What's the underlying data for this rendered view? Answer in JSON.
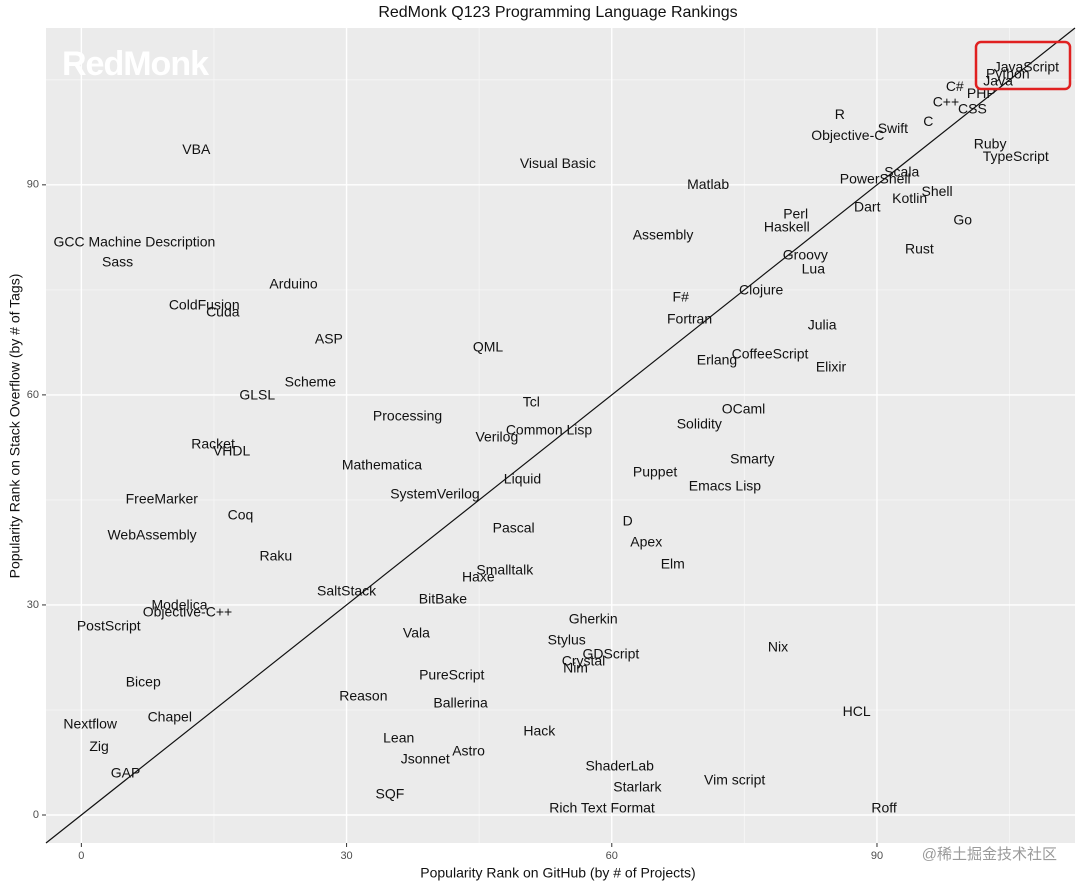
{
  "chart_data": {
    "type": "scatter",
    "title": "RedMonk Q123 Programming Language Rankings",
    "x_label": "Popularity Rank on GitHub (by # of Projects)",
    "y_label": "Popularity Rank on Stack Overflow (by # of Tags)",
    "watermark": "RedMonk",
    "source_watermark": "@稀土掘金技术社区",
    "xlim": [
      -4,
      112.4
    ],
    "ylim": [
      -4,
      112.4
    ],
    "xticks": [
      0,
      30,
      60,
      90
    ],
    "yticks": [
      0,
      30,
      60,
      90
    ],
    "grid": true,
    "minor_grid": true,
    "diagonal": true,
    "color": "#111111",
    "point_labels": [
      "JavaScript",
      "Python",
      "Java",
      "PHP",
      "C#",
      "C++",
      "CSS",
      "C",
      "R",
      "Swift",
      "Objective-C",
      "Ruby",
      "TypeScript",
      "VBA",
      "Visual Basic",
      "Scala",
      "PowerShell",
      "Matlab",
      "Shell",
      "Kotlin",
      "Dart",
      "Perl",
      "Haskell",
      "Go",
      "Assembly",
      "GCC Machine Description",
      "Rust",
      "Groovy",
      "Sass",
      "Lua",
      "Arduino",
      "Clojure",
      "F#",
      "ColdFusion",
      "Cuda",
      "Fortran",
      "Julia",
      "ASP",
      "QML",
      "CoffeeScript",
      "Erlang",
      "Elixir",
      "Scheme",
      "GLSL",
      "Tcl",
      "OCaml",
      "Processing",
      "Solidity",
      "Common Lisp",
      "Verilog",
      "Racket",
      "VHDL",
      "Smarty",
      "Mathematica",
      "Puppet",
      "Liquid",
      "Emacs Lisp",
      "SystemVerilog",
      "FreeMarker",
      "Coq",
      "D",
      "Pascal",
      "WebAssembly",
      "Apex",
      "Raku",
      "Elm",
      "Smalltalk",
      "Haxe",
      "SaltStack",
      "BitBake",
      "Modelica",
      "Objective-C++",
      "Gherkin",
      "PostScript",
      "Vala",
      "Stylus",
      "Nix",
      "GDScript",
      "Crystal",
      "Nim",
      "PureScript",
      "Bicep",
      "Reason",
      "Ballerina",
      "HCL",
      "Chapel",
      "Nextflow",
      "Hack",
      "Lean",
      "Zig",
      "Astro",
      "Jsonnet",
      "ShaderLab",
      "GAP",
      "Vim script",
      "Starlark",
      "SQF",
      "Rich Text Format",
      "Roff"
    ],
    "x": [
      106.9,
      104.8,
      103.7,
      101.8,
      98.8,
      97.8,
      100.8,
      95.8,
      85.8,
      91.8,
      86.7,
      102.8,
      105.7,
      13.0,
      53.9,
      92.8,
      89.8,
      70.9,
      96.8,
      93.7,
      88.9,
      80.8,
      79.8,
      99.7,
      65.8,
      6.0,
      94.8,
      81.9,
      4.1,
      82.8,
      24.0,
      76.9,
      67.8,
      13.9,
      16.0,
      68.8,
      83.8,
      28.0,
      46.0,
      77.9,
      71.9,
      84.8,
      25.9,
      19.9,
      50.9,
      74.9,
      36.9,
      69.9,
      52.9,
      47.0,
      14.9,
      17.0,
      75.9,
      34.0,
      64.9,
      49.9,
      72.8,
      40.0,
      9.1,
      18.0,
      61.8,
      48.9,
      8.0,
      63.9,
      22.0,
      66.9,
      47.9,
      44.9,
      30.0,
      40.9,
      11.1,
      12.0,
      57.9,
      3.1,
      37.9,
      54.9,
      78.8,
      59.9,
      56.8,
      55.9,
      41.9,
      7.0,
      31.9,
      42.9,
      87.7,
      10.0,
      1.0,
      51.8,
      35.9,
      2.0,
      43.8,
      38.9,
      60.9,
      5.0,
      73.9,
      62.9,
      34.9,
      58.9,
      90.8
    ],
    "values": [
      106.7,
      105.7,
      104.7,
      102.9,
      103.9,
      101.7,
      100.7,
      98.9,
      99.9,
      97.9,
      96.9,
      95.7,
      93.9,
      94.9,
      92.9,
      91.7,
      90.7,
      89.9,
      88.9,
      87.9,
      86.7,
      85.7,
      83.9,
      84.9,
      82.7,
      81.7,
      80.7,
      79.9,
      78.9,
      77.9,
      75.7,
      74.9,
      73.9,
      72.7,
      71.7,
      70.7,
      69.9,
      67.9,
      66.7,
      65.7,
      64.9,
      63.9,
      61.7,
      59.9,
      58.9,
      57.9,
      56.9,
      55.7,
      54.9,
      53.9,
      52.9,
      51.9,
      50.7,
      49.9,
      48.9,
      47.9,
      46.9,
      45.7,
      45.0,
      42.7,
      41.9,
      40.9,
      39.9,
      38.9,
      36.9,
      35.7,
      34.9,
      33.9,
      31.9,
      30.7,
      29.9,
      28.9,
      27.9,
      26.9,
      25.9,
      24.9,
      23.9,
      22.9,
      21.9,
      20.9,
      19.9,
      18.9,
      16.9,
      15.9,
      14.7,
      13.9,
      12.9,
      11.9,
      10.9,
      9.7,
      9.0,
      7.9,
      6.9,
      5.9,
      4.9,
      3.9,
      2.9,
      0.9,
      0.9
    ]
  }
}
